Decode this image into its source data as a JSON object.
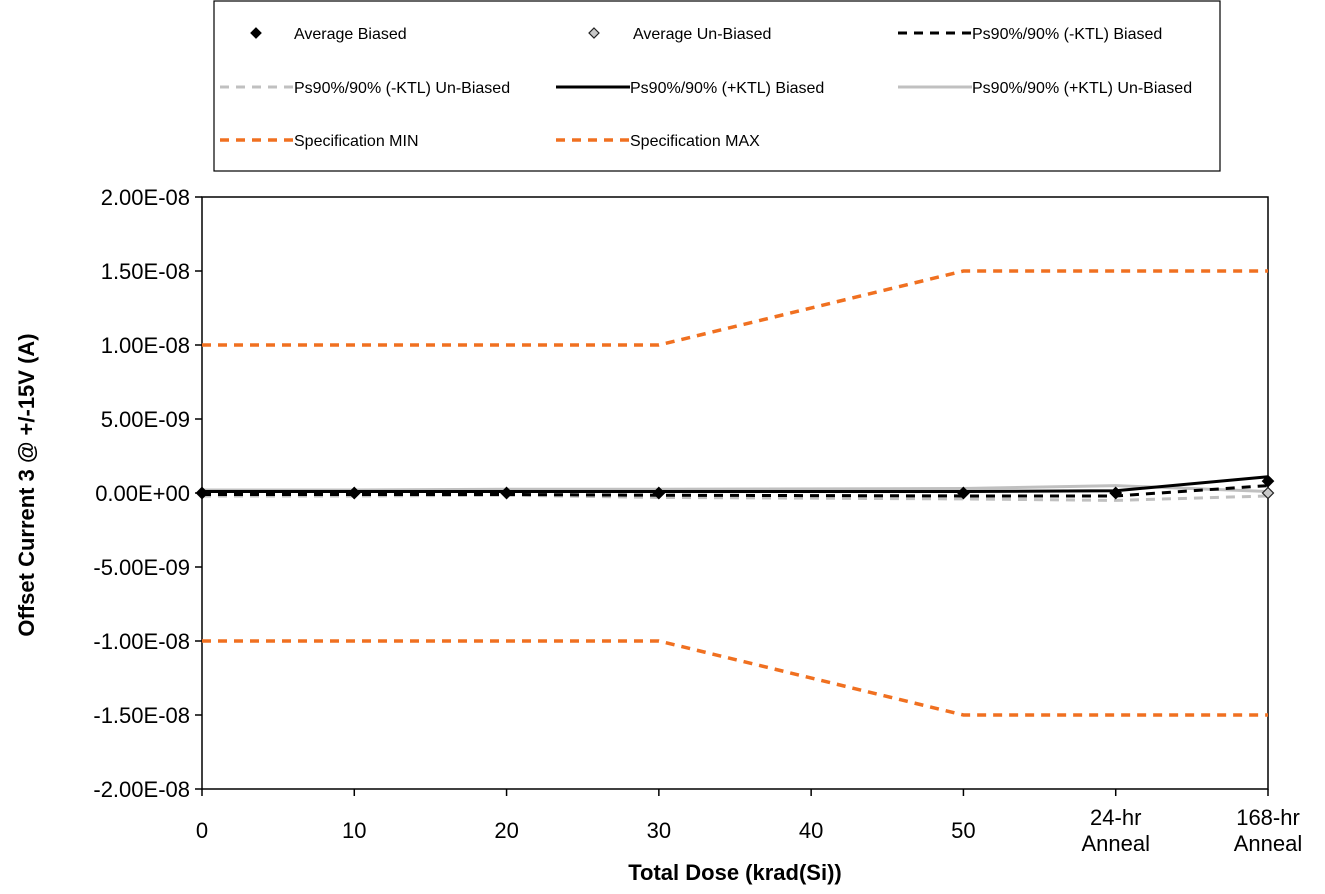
{
  "chart_data": {
    "type": "line",
    "title": "",
    "xlabel": "Total Dose (krad(Si))",
    "ylabel": "Offset Current 3 @ +/-15V (A)",
    "categories": [
      "0",
      "10",
      "20",
      "30",
      "40",
      "50",
      "24-hr\nAnneal",
      "168-hr\nAnneal"
    ],
    "ylim": [
      -2e-08,
      2e-08
    ],
    "y_ticks": [
      {
        "value": 2e-08,
        "label": "2.00E-08"
      },
      {
        "value": 1.5e-08,
        "label": "1.50E-08"
      },
      {
        "value": 1e-08,
        "label": "1.00E-08"
      },
      {
        "value": 5e-09,
        "label": "5.00E-09"
      },
      {
        "value": 0,
        "label": "0.00E+00"
      },
      {
        "value": -5e-09,
        "label": "-5.00E-09"
      },
      {
        "value": -1e-08,
        "label": "-1.00E-08"
      },
      {
        "value": -1.5e-08,
        "label": "-1.50E-08"
      },
      {
        "value": -2e-08,
        "label": "-2.00E-08"
      }
    ],
    "grid": false,
    "legend_position": "top",
    "series": [
      {
        "name": "Average Biased",
        "style": "marker-filled-diamond",
        "color": "#000000",
        "x": [
          0,
          10,
          20,
          30,
          50,
          60,
          70
        ],
        "values": [
          0,
          0,
          0,
          0,
          0,
          0,
          8e-10
        ]
      },
      {
        "name": "Average Un-Biased",
        "style": "marker-hollow-diamond",
        "color": "#8c8c8c",
        "x": [
          0,
          10,
          20,
          30,
          50,
          60,
          70
        ],
        "values": [
          0,
          0,
          0,
          0,
          0,
          0,
          0
        ]
      },
      {
        "name": "Ps90%/90% (-KTL) Biased",
        "style": "dashed",
        "color": "#000000",
        "x": [
          0,
          10,
          20,
          30,
          50,
          60,
          70
        ],
        "values": [
          -1e-10,
          -1e-10,
          -1e-10,
          -1.5e-10,
          -2e-10,
          -2e-10,
          5e-10
        ]
      },
      {
        "name": "Ps90%/90% (-KTL) Un-Biased",
        "style": "dashed",
        "color": "#c0c0c0",
        "x": [
          0,
          10,
          20,
          30,
          50,
          60,
          70
        ],
        "values": [
          -2e-10,
          -2e-10,
          -1.5e-10,
          -3e-10,
          -4e-10,
          -5e-10,
          -2e-10
        ]
      },
      {
        "name": "Ps90%/90% (+KTL) Biased",
        "style": "solid",
        "color": "#000000",
        "x": [
          0,
          10,
          20,
          30,
          50,
          60,
          70
        ],
        "values": [
          1e-10,
          1e-10,
          1e-10,
          1e-10,
          1e-10,
          1.5e-10,
          1.1e-09
        ]
      },
      {
        "name": "Ps90%/90% (+KTL) Un-Biased",
        "style": "solid",
        "color": "#c0c0c0",
        "x": [
          0,
          10,
          20,
          30,
          50,
          60,
          70
        ],
        "values": [
          2e-10,
          2e-10,
          2.5e-10,
          2.5e-10,
          3e-10,
          5e-10,
          1e-10
        ]
      },
      {
        "name": "Specification MIN",
        "style": "dashed",
        "color": "#f07020",
        "x": [
          0,
          10,
          20,
          30,
          50,
          60,
          70
        ],
        "values": [
          1e-08,
          1e-08,
          1e-08,
          1e-08,
          1.5e-08,
          1.5e-08,
          1.5e-08
        ]
      },
      {
        "name": "Specification MAX",
        "style": "dashed",
        "color": "#f07020",
        "x": [
          0,
          10,
          20,
          30,
          50,
          60,
          70
        ],
        "values": [
          -1e-08,
          -1e-08,
          -1e-08,
          -1e-08,
          -1.5e-08,
          -1.5e-08,
          -1.5e-08
        ]
      }
    ]
  }
}
